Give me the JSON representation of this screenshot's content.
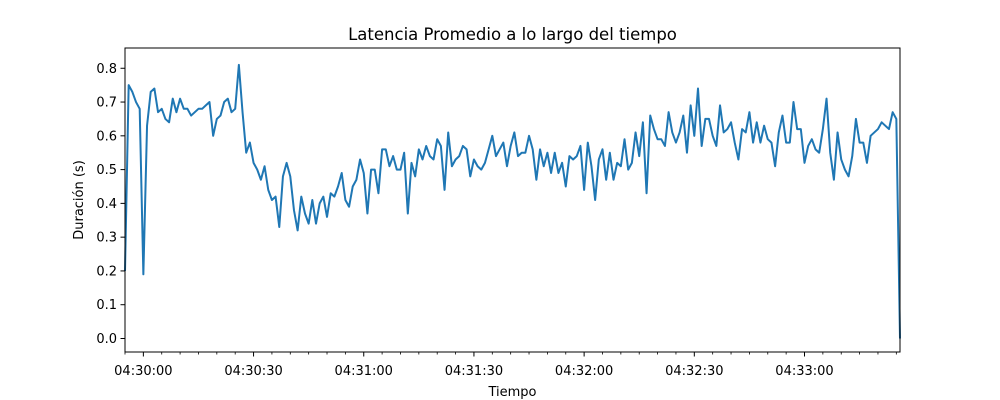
{
  "chart_data": {
    "type": "line",
    "title": "Latencia Promedio a lo largo del tiempo",
    "xlabel": "Tiempo",
    "ylabel": "Duración (s)",
    "x_ticks": [
      "04:30:00",
      "04:30:30",
      "04:31:00",
      "04:31:30",
      "04:32:00",
      "04:32:30",
      "04:33:00"
    ],
    "x_tick_seconds": [
      0,
      30,
      60,
      90,
      120,
      150,
      180
    ],
    "xlim_seconds": [
      -5,
      206
    ],
    "y_ticks": [
      "0.0",
      "0.1",
      "0.2",
      "0.3",
      "0.4",
      "0.5",
      "0.6",
      "0.7",
      "0.8"
    ],
    "ylim": [
      -0.04,
      0.86
    ],
    "grid": false,
    "series": [
      {
        "color": "#1f77b4",
        "points": [
          [
            -5.0,
            0.2
          ],
          [
            -4.0,
            0.75
          ],
          [
            -3.0,
            0.73
          ],
          [
            -2.0,
            0.7
          ],
          [
            -1.0,
            0.68
          ],
          [
            0.0,
            0.19
          ],
          [
            1.0,
            0.63
          ],
          [
            2.0,
            0.73
          ],
          [
            3.0,
            0.74
          ],
          [
            4.0,
            0.67
          ],
          [
            5.0,
            0.68
          ],
          [
            6.0,
            0.65
          ],
          [
            7.0,
            0.64
          ],
          [
            8.0,
            0.71
          ],
          [
            9.0,
            0.67
          ],
          [
            10.0,
            0.71
          ],
          [
            11.0,
            0.68
          ],
          [
            12.0,
            0.68
          ],
          [
            13.0,
            0.66
          ],
          [
            14.0,
            0.67
          ],
          [
            15.0,
            0.68
          ],
          [
            16.0,
            0.68
          ],
          [
            17.0,
            0.69
          ],
          [
            18.0,
            0.7
          ],
          [
            19.0,
            0.6
          ],
          [
            20.0,
            0.65
          ],
          [
            21.0,
            0.66
          ],
          [
            22.0,
            0.7
          ],
          [
            23.0,
            0.71
          ],
          [
            24.0,
            0.67
          ],
          [
            25.0,
            0.68
          ],
          [
            26.0,
            0.81
          ],
          [
            27.0,
            0.67
          ],
          [
            28.0,
            0.55
          ],
          [
            29.0,
            0.58
          ],
          [
            30.0,
            0.52
          ],
          [
            31.0,
            0.5
          ],
          [
            32.0,
            0.47
          ],
          [
            33.0,
            0.51
          ],
          [
            34.0,
            0.44
          ],
          [
            35.0,
            0.41
          ],
          [
            36.0,
            0.42
          ],
          [
            37.0,
            0.33
          ],
          [
            38.0,
            0.48
          ],
          [
            39.0,
            0.52
          ],
          [
            40.0,
            0.48
          ],
          [
            41.0,
            0.38
          ],
          [
            42.0,
            0.32
          ],
          [
            43.0,
            0.42
          ],
          [
            44.0,
            0.37
          ],
          [
            45.0,
            0.34
          ],
          [
            46.0,
            0.41
          ],
          [
            47.0,
            0.34
          ],
          [
            48.0,
            0.4
          ],
          [
            49.0,
            0.42
          ],
          [
            50.0,
            0.36
          ],
          [
            51.0,
            0.43
          ],
          [
            52.0,
            0.42
          ],
          [
            53.0,
            0.45
          ],
          [
            54.0,
            0.49
          ],
          [
            55.0,
            0.41
          ],
          [
            56.0,
            0.39
          ],
          [
            57.0,
            0.45
          ],
          [
            58.0,
            0.47
          ],
          [
            59.0,
            0.53
          ],
          [
            60.0,
            0.49
          ],
          [
            61.0,
            0.37
          ],
          [
            62.0,
            0.5
          ],
          [
            63.0,
            0.5
          ],
          [
            64.0,
            0.43
          ],
          [
            65.0,
            0.56
          ],
          [
            66.0,
            0.56
          ],
          [
            67.0,
            0.51
          ],
          [
            68.0,
            0.54
          ],
          [
            69.0,
            0.5
          ],
          [
            70.0,
            0.5
          ],
          [
            71.0,
            0.55
          ],
          [
            72.0,
            0.37
          ],
          [
            73.0,
            0.52
          ],
          [
            74.0,
            0.48
          ],
          [
            75.0,
            0.56
          ],
          [
            76.0,
            0.53
          ],
          [
            77.0,
            0.57
          ],
          [
            78.0,
            0.54
          ],
          [
            79.0,
            0.53
          ],
          [
            80.0,
            0.59
          ],
          [
            81.0,
            0.57
          ],
          [
            82.0,
            0.44
          ],
          [
            83.0,
            0.61
          ],
          [
            84.0,
            0.51
          ],
          [
            85.0,
            0.53
          ],
          [
            86.0,
            0.54
          ],
          [
            87.0,
            0.57
          ],
          [
            88.0,
            0.56
          ],
          [
            89.0,
            0.48
          ],
          [
            90.0,
            0.53
          ],
          [
            91.0,
            0.51
          ],
          [
            92.0,
            0.5
          ],
          [
            93.0,
            0.52
          ],
          [
            94.0,
            0.56
          ],
          [
            95.0,
            0.6
          ],
          [
            96.0,
            0.54
          ],
          [
            97.0,
            0.56
          ],
          [
            98.0,
            0.58
          ],
          [
            99.0,
            0.51
          ],
          [
            100.0,
            0.57
          ],
          [
            101.0,
            0.61
          ],
          [
            102.0,
            0.54
          ],
          [
            103.0,
            0.55
          ],
          [
            104.0,
            0.55
          ],
          [
            105.0,
            0.6
          ],
          [
            106.0,
            0.56
          ],
          [
            107.0,
            0.47
          ],
          [
            108.0,
            0.56
          ],
          [
            109.0,
            0.51
          ],
          [
            110.0,
            0.55
          ],
          [
            111.0,
            0.49
          ],
          [
            112.0,
            0.55
          ],
          [
            113.0,
            0.49
          ],
          [
            114.0,
            0.52
          ],
          [
            115.0,
            0.45
          ],
          [
            116.0,
            0.54
          ],
          [
            117.0,
            0.53
          ],
          [
            118.0,
            0.54
          ],
          [
            119.0,
            0.57
          ],
          [
            120.0,
            0.44
          ],
          [
            121.0,
            0.58
          ],
          [
            122.0,
            0.51
          ],
          [
            123.0,
            0.41
          ],
          [
            124.0,
            0.53
          ],
          [
            125.0,
            0.56
          ],
          [
            126.0,
            0.47
          ],
          [
            127.0,
            0.55
          ],
          [
            128.0,
            0.47
          ],
          [
            129.0,
            0.52
          ],
          [
            130.0,
            0.51
          ],
          [
            131.0,
            0.59
          ],
          [
            132.0,
            0.5
          ],
          [
            133.0,
            0.52
          ],
          [
            134.0,
            0.61
          ],
          [
            135.0,
            0.54
          ],
          [
            136.0,
            0.64
          ],
          [
            137.0,
            0.43
          ],
          [
            138.0,
            0.66
          ],
          [
            139.0,
            0.62
          ],
          [
            140.0,
            0.59
          ],
          [
            141.0,
            0.59
          ],
          [
            142.0,
            0.57
          ],
          [
            143.0,
            0.67
          ],
          [
            144.0,
            0.61
          ],
          [
            145.0,
            0.58
          ],
          [
            146.0,
            0.61
          ],
          [
            147.0,
            0.66
          ],
          [
            148.0,
            0.55
          ],
          [
            149.0,
            0.69
          ],
          [
            150.0,
            0.6
          ],
          [
            151.0,
            0.74
          ],
          [
            152.0,
            0.57
          ],
          [
            153.0,
            0.65
          ],
          [
            154.0,
            0.65
          ],
          [
            155.0,
            0.6
          ],
          [
            156.0,
            0.57
          ],
          [
            157.0,
            0.69
          ],
          [
            158.0,
            0.61
          ],
          [
            159.0,
            0.62
          ],
          [
            160.0,
            0.64
          ],
          [
            161.0,
            0.58
          ],
          [
            162.0,
            0.53
          ],
          [
            163.0,
            0.62
          ],
          [
            164.0,
            0.61
          ],
          [
            165.0,
            0.67
          ],
          [
            166.0,
            0.58
          ],
          [
            167.0,
            0.64
          ],
          [
            168.0,
            0.58
          ],
          [
            169.0,
            0.63
          ],
          [
            170.0,
            0.59
          ],
          [
            171.0,
            0.58
          ],
          [
            172.0,
            0.51
          ],
          [
            173.0,
            0.61
          ],
          [
            174.0,
            0.66
          ],
          [
            175.0,
            0.58
          ],
          [
            176.0,
            0.58
          ],
          [
            177.0,
            0.7
          ],
          [
            178.0,
            0.62
          ],
          [
            179.0,
            0.62
          ],
          [
            180.0,
            0.52
          ],
          [
            181.0,
            0.57
          ],
          [
            182.0,
            0.59
          ],
          [
            183.0,
            0.56
          ],
          [
            184.0,
            0.55
          ],
          [
            185.0,
            0.62
          ],
          [
            186.0,
            0.71
          ],
          [
            187.0,
            0.55
          ],
          [
            188.0,
            0.47
          ],
          [
            189.0,
            0.61
          ],
          [
            190.0,
            0.53
          ],
          [
            191.0,
            0.5
          ],
          [
            192.0,
            0.48
          ],
          [
            193.0,
            0.54
          ],
          [
            194.0,
            0.65
          ],
          [
            195.0,
            0.58
          ],
          [
            196.0,
            0.58
          ],
          [
            197.0,
            0.52
          ],
          [
            198.0,
            0.6
          ],
          [
            199.0,
            0.61
          ],
          [
            200.0,
            0.62
          ],
          [
            201.0,
            0.64
          ],
          [
            202.0,
            0.63
          ],
          [
            203.0,
            0.62
          ],
          [
            204.0,
            0.67
          ],
          [
            205.0,
            0.65
          ],
          [
            206.0,
            0.0
          ]
        ]
      }
    ]
  }
}
